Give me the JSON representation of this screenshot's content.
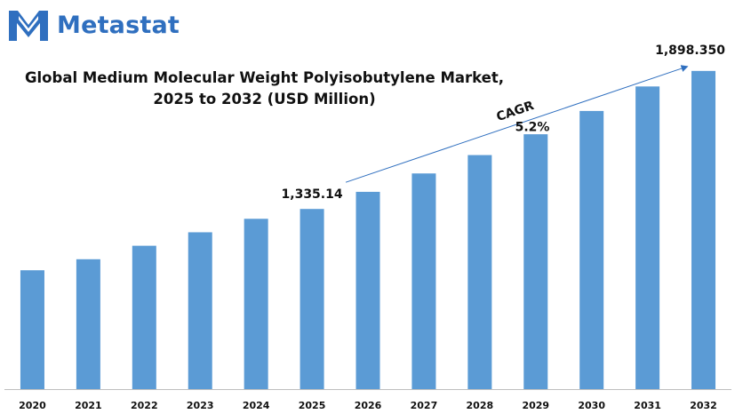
{
  "brand": {
    "name": "Metastat",
    "accent": "#2f6fbf",
    "logo_icon": "metastat-m-logo-icon"
  },
  "chart_data": {
    "type": "bar",
    "title": "Global Medium Molecular Weight Polyisobutylene Market, 2025 to 2032 (USD Million)",
    "title_lines": [
      "Global Medium Molecular Weight Polyisobutylene Market,",
      "2025 to 2032 (USD Million)"
    ],
    "categories": [
      "2020",
      "2021",
      "2022",
      "2023",
      "2024",
      "2025",
      "2026",
      "2027",
      "2028",
      "2029",
      "2030",
      "2031",
      "2032"
    ],
    "values": [
      1085,
      1130,
      1185,
      1240,
      1295,
      1335.14,
      1405,
      1480,
      1555,
      1640,
      1735,
      1835,
      1898.35
    ],
    "ylim": [
      600,
      2050
    ],
    "bar_color": "#5b9bd5",
    "grid": false,
    "legend": "none",
    "annotations": {
      "start_label": "1,335.14",
      "end_label": "1,898.350",
      "cagr_label": "CAGR",
      "cagr_value": "5.2%"
    }
  }
}
